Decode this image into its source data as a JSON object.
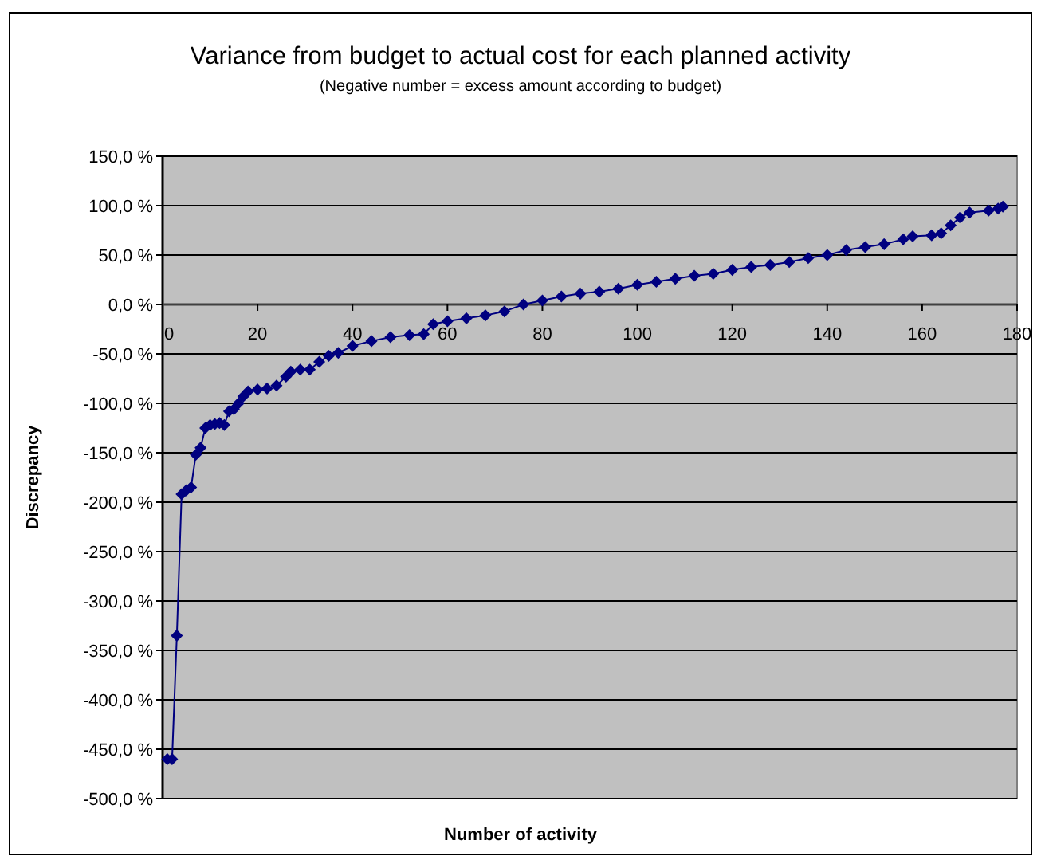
{
  "chart_data": {
    "type": "line",
    "title": "Variance from budget to actual cost for each planned activity",
    "subtitle": "(Negative number = excess amount according to budget)",
    "xlabel": "Number of activity",
    "ylabel": "Discrepancy",
    "x": [
      1,
      2,
      3,
      4,
      5,
      6,
      7,
      8,
      9,
      10,
      11,
      12,
      13,
      14,
      15,
      16,
      17,
      18,
      20,
      22,
      24,
      26,
      27,
      29,
      31,
      33,
      35,
      37,
      40,
      44,
      48,
      52,
      55,
      57,
      60,
      64,
      68,
      72,
      76,
      80,
      84,
      88,
      92,
      96,
      100,
      104,
      108,
      112,
      116,
      120,
      124,
      128,
      132,
      136,
      140,
      144,
      148,
      152,
      156,
      158,
      162,
      164,
      166,
      168,
      170,
      174,
      176,
      177
    ],
    "series": [
      {
        "color": "#000080",
        "values": [
          -460,
          -460,
          -335,
          -192,
          -188,
          -185,
          -152,
          -145,
          -125,
          -122,
          -121,
          -120,
          -122,
          -108,
          -106,
          -100,
          -93,
          -88,
          -86,
          -85,
          -82,
          -73,
          -68,
          -66,
          -66,
          -58,
          -52,
          -49,
          -42,
          -37,
          -33,
          -31,
          -30,
          -20,
          -17,
          -14,
          -11,
          -7,
          0,
          4,
          8,
          11,
          13,
          16,
          20,
          23,
          26,
          29,
          31,
          35,
          38,
          40,
          43,
          47,
          50,
          55,
          58,
          61,
          66,
          69,
          70,
          72,
          80,
          88,
          93,
          95,
          97,
          99
        ]
      }
    ],
    "xlim": [
      0,
      180
    ],
    "xticks": [
      0,
      20,
      40,
      60,
      80,
      100,
      120,
      140,
      160,
      180
    ],
    "ylim": [
      -500,
      150
    ],
    "yticks": [
      {
        "value": -500,
        "label": "-500,0 %"
      },
      {
        "value": -450,
        "label": "-450,0 %"
      },
      {
        "value": -400,
        "label": "-400,0 %"
      },
      {
        "value": -350,
        "label": "-350,0 %"
      },
      {
        "value": -300,
        "label": "-300,0 %"
      },
      {
        "value": -250,
        "label": "-250,0 %"
      },
      {
        "value": -200,
        "label": "-200,0 %"
      },
      {
        "value": -150,
        "label": "-150,0 %"
      },
      {
        "value": -100,
        "label": "-100,0 %"
      },
      {
        "value": -50,
        "label": "-50,0 %"
      },
      {
        "value": 0,
        "label": "0,0 %"
      },
      {
        "value": 50,
        "label": "50,0 %"
      },
      {
        "value": 100,
        "label": "100,0 %"
      },
      {
        "value": 150,
        "label": "150,0 %"
      }
    ],
    "grid": "y",
    "marker": "diamond",
    "line_style": "solid"
  }
}
